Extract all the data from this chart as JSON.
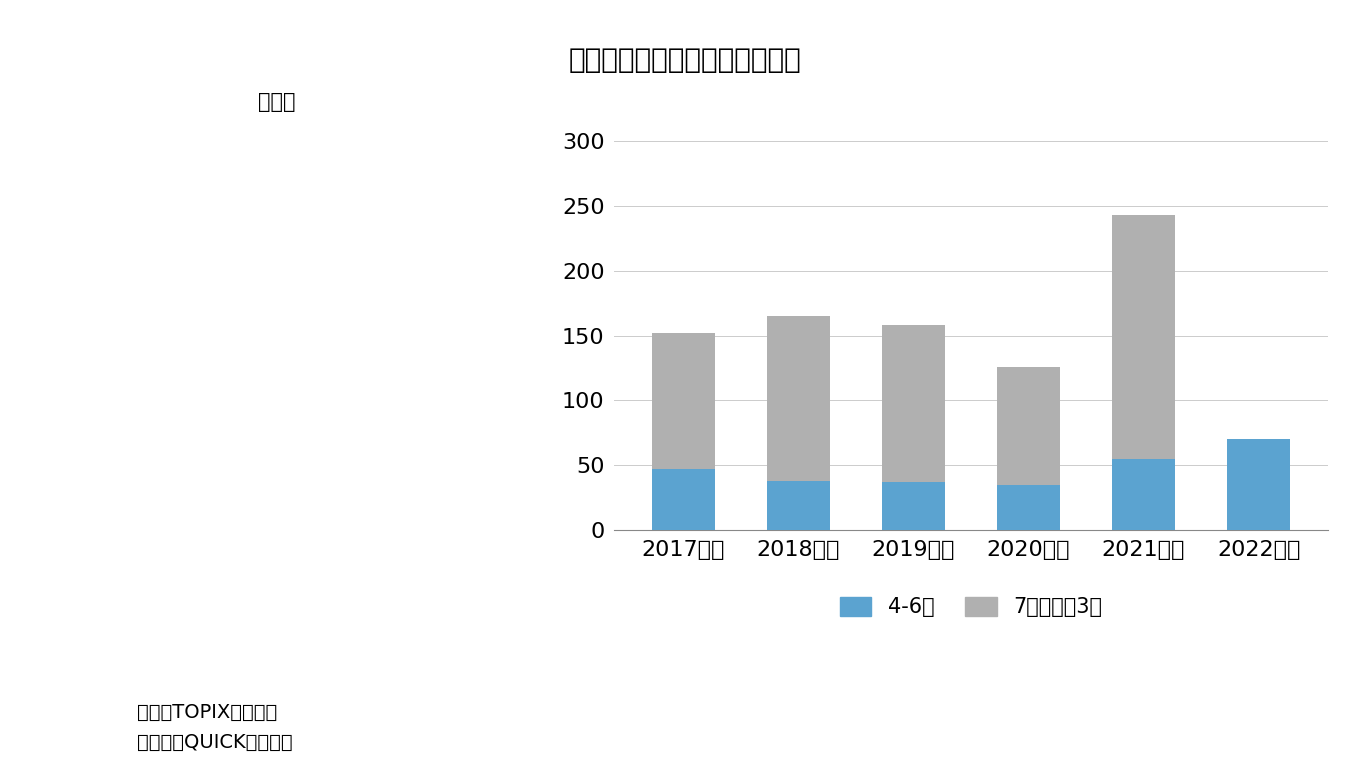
{
  "title": "図表３　自己株式の消却が急増",
  "categories": [
    "2017年度",
    "2018年度",
    "2019年度",
    "2020年度",
    "2021年度",
    "2022年度"
  ],
  "blue_values": [
    47,
    38,
    37,
    35,
    55,
    70
  ],
  "gray_values": [
    105,
    127,
    121,
    91,
    188,
    0
  ],
  "blue_color": "#5ba3d0",
  "gray_color": "#b0b0b0",
  "ylabel_unit": "（件）",
  "yticks": [
    0,
    50,
    100,
    150,
    200,
    250,
    300
  ],
  "ylim": [
    0,
    310
  ],
  "legend_blue": "4-6月",
  "legend_gray": "7月－翄年3月",
  "note1": "（注）TOPIX構成銘柄",
  "note2": "（資料）QUICKから作成",
  "background_color": "#ffffff",
  "bar_width": 0.55
}
